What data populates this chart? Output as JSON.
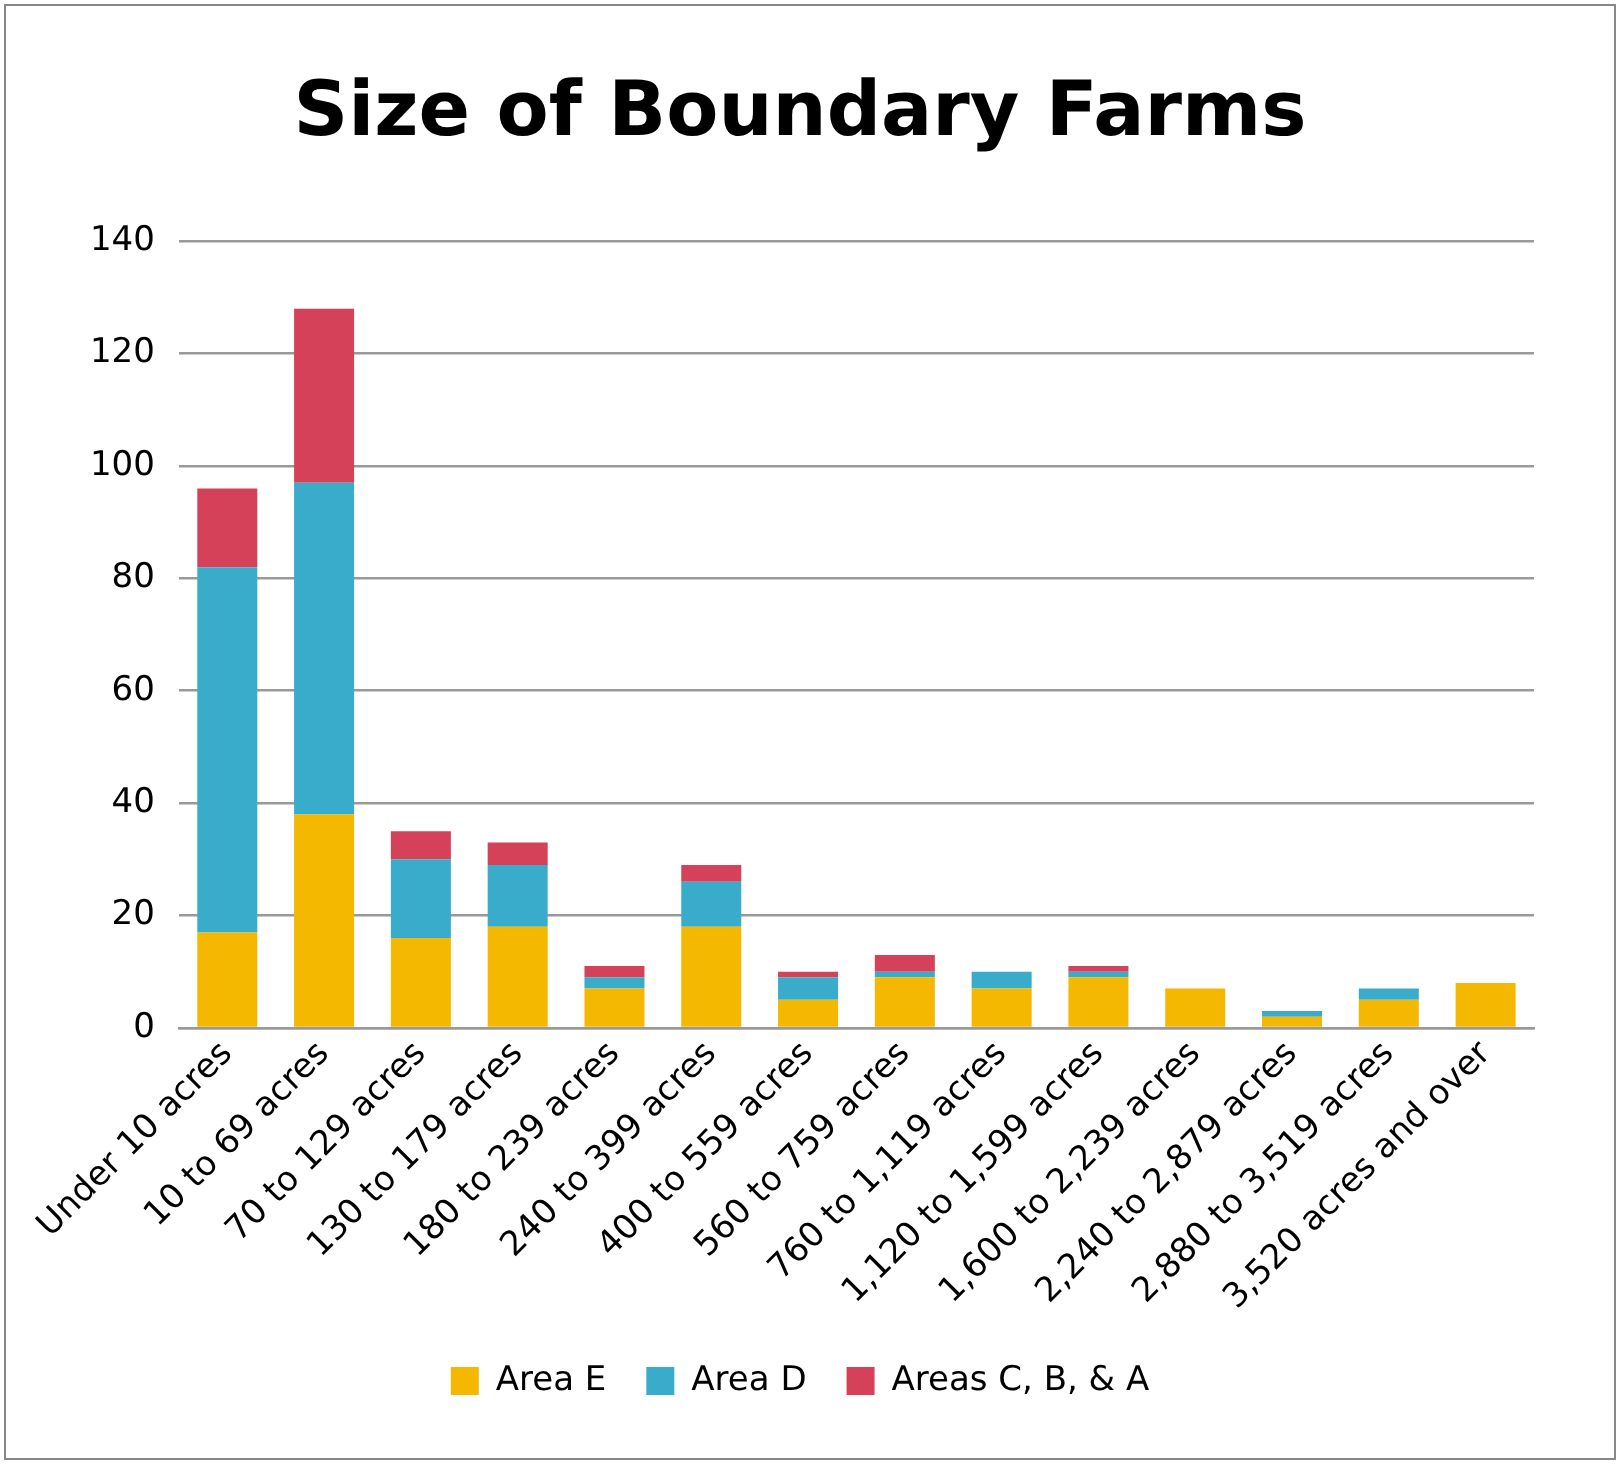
{
  "chart_data": {
    "type": "bar",
    "title": "Size of Boundary Farms",
    "stacked": true,
    "categories": [
      "Under 10 acres",
      "10 to 69 acres",
      "70 to 129 acres",
      "130 to 179 acres",
      "180 to 239 acres",
      "240 to 399 acres",
      "400 to 559 acres",
      "560 to 759 acres",
      "760 to 1,119 acres",
      "1,120 to 1,599 acres",
      "1,600 to 2,239 acres",
      "2,240 to 2,879 acres",
      "2,880 to 3,519 acres",
      "3,520 acres and over"
    ],
    "series": [
      {
        "name": "Area E",
        "color": "#f5b800",
        "values": [
          17,
          38,
          16,
          18,
          7,
          18,
          5,
          9,
          7,
          9,
          7,
          2,
          5,
          8
        ]
      },
      {
        "name": "Area D",
        "color": "#3aaccb",
        "values": [
          65,
          59,
          14,
          11,
          2,
          8,
          4,
          1,
          3,
          1,
          0,
          1,
          2,
          0
        ]
      },
      {
        "name": "Areas C, B, & A",
        "color": "#d6415a",
        "values": [
          14,
          31,
          5,
          4,
          2,
          3,
          1,
          3,
          0,
          1,
          0,
          0,
          0,
          0
        ]
      }
    ],
    "ylim": [
      0,
      140
    ],
    "yticks": [
      0,
      20,
      40,
      60,
      80,
      100,
      120,
      140
    ],
    "grid": "y",
    "legend": "bottom"
  }
}
